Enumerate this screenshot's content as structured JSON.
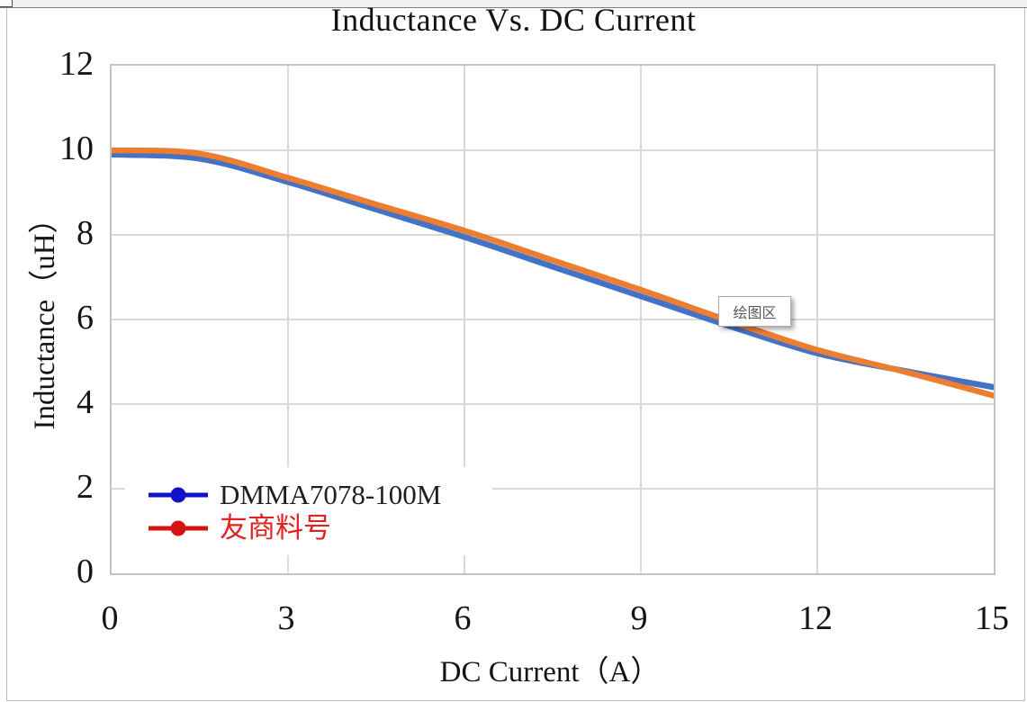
{
  "tooltip": {
    "label": "绘图区"
  },
  "chart_data": {
    "type": "line",
    "title": "Inductance Vs. DC Current",
    "xlabel": "DC Current（A）",
    "ylabel": "Inductance（uH）",
    "xlim": [
      0,
      15
    ],
    "ylim": [
      0,
      12
    ],
    "x_ticks": [
      0,
      3,
      6,
      9,
      12,
      15
    ],
    "y_ticks": [
      0,
      2,
      4,
      6,
      8,
      10,
      12
    ],
    "grid": true,
    "legend_position": "inside-bottom-left",
    "x": [
      0,
      1.5,
      3,
      4.5,
      6,
      7.5,
      9,
      10.5,
      12,
      13.5,
      15
    ],
    "series": [
      {
        "name": "DMMA7078-100M",
        "line_color": "#4472C4",
        "legend_color": "#1111CC",
        "label_color": "#1f1f1f",
        "values": [
          9.9,
          9.8,
          9.25,
          8.6,
          7.95,
          7.25,
          6.55,
          5.85,
          5.2,
          4.78,
          4.4
        ]
      },
      {
        "name": "友商料号",
        "line_color": "#ED7D31",
        "legend_color": "#D41414",
        "label_color": "#E42020",
        "values": [
          10.0,
          9.92,
          9.35,
          8.72,
          8.1,
          7.4,
          6.7,
          5.97,
          5.28,
          4.76,
          4.2
        ]
      }
    ]
  }
}
